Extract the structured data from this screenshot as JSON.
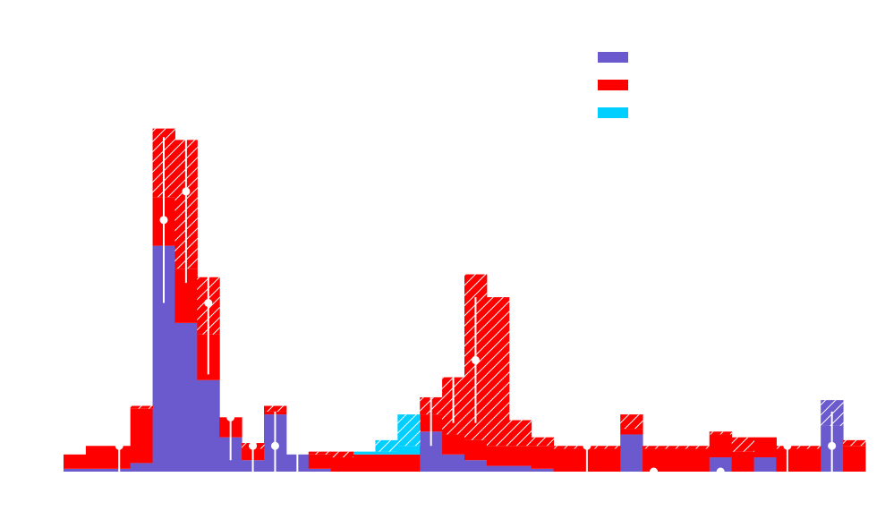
{
  "chart_data": {
    "type": "bar",
    "stacked": true,
    "title": "",
    "xlabel": "",
    "ylabel": "",
    "bins": 36,
    "ylim": [
      0,
      1.18
    ],
    "legend": {
      "placement": "top-right"
    },
    "series": [
      {
        "key": "purple",
        "name": "",
        "color": "#6a5acd",
        "values": [
          0.01,
          0.01,
          0.01,
          0.03,
          0.79,
          0.52,
          0.32,
          0.12,
          0.04,
          0.2,
          0.06,
          0.01,
          0.0,
          0.0,
          0.0,
          0.0,
          0.14,
          0.06,
          0.04,
          0.02,
          0.02,
          0.01,
          0.0,
          0.0,
          0.0,
          0.13,
          0.0,
          0.0,
          0.0,
          0.05,
          0.0,
          0.05,
          0.0,
          0.0,
          0.16,
          0.0
        ]
      },
      {
        "key": "red",
        "name": "",
        "color": "#ff0000",
        "values": [
          0.05,
          0.08,
          0.08,
          0.19,
          0.17,
          0.19,
          0.16,
          0.07,
          0.04,
          0.01,
          0.0,
          0.05,
          0.05,
          0.06,
          0.06,
          0.06,
          0.06,
          0.07,
          0.07,
          0.07,
          0.07,
          0.08,
          0.08,
          0.08,
          0.08,
          0.02,
          0.08,
          0.08,
          0.08,
          0.08,
          0.07,
          0.07,
          0.08,
          0.08,
          0.0,
          0.09
        ]
      },
      {
        "key": "cyan",
        "name": "",
        "color": "#00cfff",
        "values": [
          0.0,
          0.0,
          0.0,
          0.0,
          0.0,
          0.0,
          0.0,
          0.0,
          0.0,
          0.0,
          0.0,
          0.0,
          0.0,
          0.01,
          0.01,
          0.03,
          0.0,
          0.0,
          0.0,
          0.0,
          0.0,
          0.0,
          0.0,
          0.0,
          0.0,
          0.0,
          0.0,
          0.0,
          0.0,
          0.0,
          0.0,
          0.0,
          0.0,
          0.0,
          0.0,
          0.0
        ]
      }
    ],
    "totals_with_unc": [
      0.06,
      0.09,
      0.09,
      0.23,
      1.2,
      1.16,
      0.68,
      0.17,
      0.1,
      0.23,
      0.06,
      0.07,
      0.07,
      0.07,
      0.11,
      0.2,
      0.26,
      0.33,
      0.69,
      0.61,
      0.18,
      0.12,
      0.09,
      0.09,
      0.09,
      0.2,
      0.09,
      0.09,
      0.09,
      0.14,
      0.12,
      0.08,
      0.09,
      0.09,
      0.25,
      0.11
    ],
    "points": [
      {
        "bin": 2,
        "y": 0.09,
        "err": 0.12
      },
      {
        "bin": 4,
        "y": 0.88,
        "err": 0.29
      },
      {
        "bin": 5,
        "y": 0.98,
        "err": 0.32
      },
      {
        "bin": 6,
        "y": 0.59,
        "err": 0.25
      },
      {
        "bin": 7,
        "y": 0.19,
        "err": 0.15
      },
      {
        "bin": 8,
        "y": 0.09,
        "err": 0.12
      },
      {
        "bin": 9,
        "y": 0.09,
        "err": 0.12
      },
      {
        "bin": 10,
        "y": 0.09,
        "err": 0.12
      },
      {
        "bin": 16,
        "y": 0.29,
        "err": 0.2
      },
      {
        "bin": 17,
        "y": 0.39,
        "err": 0.22
      },
      {
        "bin": 18,
        "y": 0.39,
        "err": 0.22
      },
      {
        "bin": 23,
        "y": 0.09,
        "err": 0.12
      },
      {
        "bin": 26,
        "y": 0.0,
        "err": 0.0
      },
      {
        "bin": 29,
        "y": 0.0,
        "err": 0.0
      },
      {
        "bin": 32,
        "y": 0.09,
        "err": 0.12
      },
      {
        "bin": 34,
        "y": 0.09,
        "err": 0.12
      }
    ]
  }
}
